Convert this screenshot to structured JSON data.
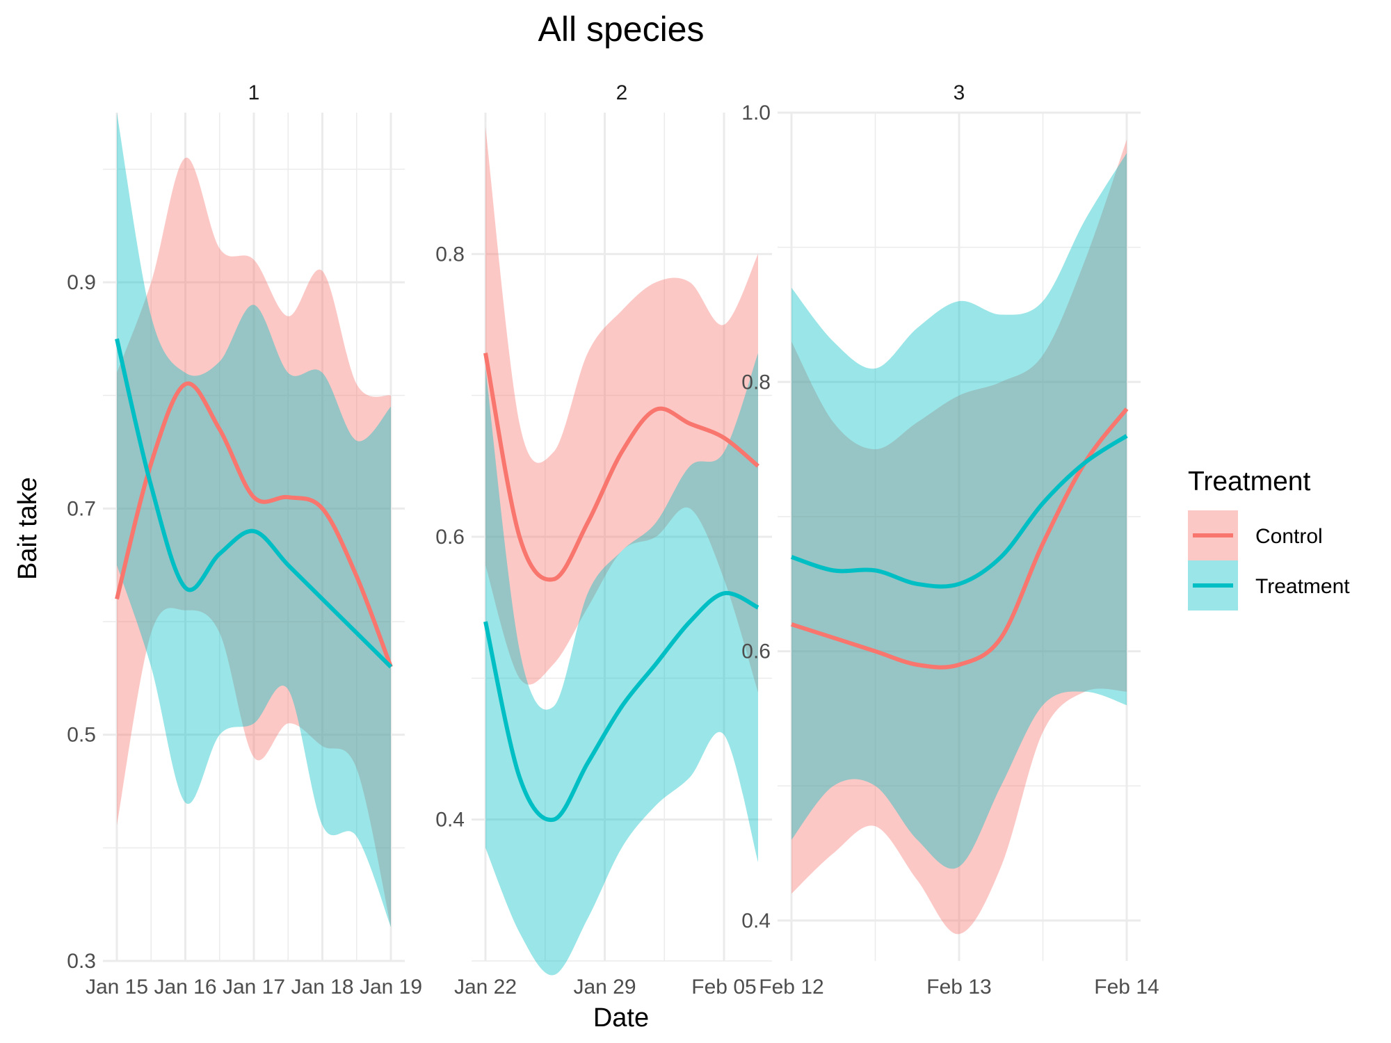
{
  "chart_data": {
    "type": "line",
    "title": "All species",
    "xlabel": "Date",
    "ylabel": "Bait take",
    "legend": {
      "title": "Treatment",
      "placement": "right",
      "entries": [
        {
          "name": "Control",
          "color": "#F8766D"
        },
        {
          "name": "Treatment",
          "color": "#00BFC4"
        }
      ]
    },
    "overlap_color": "#989898",
    "ribbon_opacity": 0.4,
    "facets": [
      {
        "strip": "1",
        "xlim": [
          "2024-01-15",
          "2024-01-19"
        ],
        "x_ticks": [
          {
            "date": "2024-01-15",
            "label": "Jan 15"
          },
          {
            "date": "2024-01-16",
            "label": "Jan 16"
          },
          {
            "date": "2024-01-17",
            "label": "Jan 17"
          },
          {
            "date": "2024-01-18",
            "label": "Jan 18"
          },
          {
            "date": "2024-01-19",
            "label": "Jan 19"
          }
        ],
        "ylim": [
          0.3,
          1.05
        ],
        "y_ticks": [
          0.3,
          0.5,
          0.7,
          0.9
        ],
        "y_minor": [
          0.4,
          0.6,
          0.8,
          1.0
        ],
        "series": [
          {
            "name": "Control",
            "x": [
              "2024-01-15 00:00",
              "2024-01-15 12:00",
              "2024-01-16 00:00",
              "2024-01-16 12:00",
              "2024-01-17 00:00",
              "2024-01-17 12:00",
              "2024-01-18 00:00",
              "2024-01-18 12:00",
              "2024-01-19 00:00"
            ],
            "y": [
              0.62,
              0.74,
              0.81,
              0.77,
              0.71,
              0.71,
              0.7,
              0.64,
              0.56
            ],
            "lower": [
              0.42,
              0.59,
              0.61,
              0.59,
              0.48,
              0.51,
              0.49,
              0.47,
              0.33
            ],
            "upper": [
              0.82,
              0.9,
              1.01,
              0.93,
              0.92,
              0.87,
              0.91,
              0.81,
              0.8
            ]
          },
          {
            "name": "Treatment",
            "x": [
              "2024-01-15 00:00",
              "2024-01-15 12:00",
              "2024-01-16 00:00",
              "2024-01-16 12:00",
              "2024-01-17 00:00",
              "2024-01-17 12:00",
              "2024-01-18 00:00",
              "2024-01-18 12:00",
              "2024-01-19 00:00"
            ],
            "y": [
              0.85,
              0.72,
              0.63,
              0.66,
              0.68,
              0.65,
              0.62,
              0.59,
              0.56
            ],
            "lower": [
              0.65,
              0.56,
              0.44,
              0.5,
              0.51,
              0.54,
              0.42,
              0.41,
              0.33
            ],
            "upper": [
              1.05,
              0.87,
              0.82,
              0.83,
              0.88,
              0.82,
              0.82,
              0.76,
              0.79
            ]
          }
        ]
      },
      {
        "strip": "2",
        "xlim": [
          "2024-01-22",
          "2024-02-07"
        ],
        "x_ticks": [
          {
            "date": "2024-01-22",
            "label": "Jan 22"
          },
          {
            "date": "2024-01-29",
            "label": "Jan 29"
          },
          {
            "date": "2024-02-05",
            "label": "Feb 05"
          }
        ],
        "ylim": [
          0.3,
          0.9
        ],
        "y_ticks": [
          0.4,
          0.6,
          0.8
        ],
        "y_minor": [
          0.3,
          0.5,
          0.7
        ],
        "series": [
          {
            "name": "Control",
            "x": [
              "2024-01-22",
              "2024-01-24",
              "2024-01-26",
              "2024-01-28",
              "2024-01-30",
              "2024-02-01",
              "2024-02-03",
              "2024-02-05",
              "2024-02-07"
            ],
            "y": [
              0.73,
              0.6,
              0.57,
              0.61,
              0.66,
              0.69,
              0.68,
              0.67,
              0.65
            ],
            "lower": [
              0.58,
              0.5,
              0.51,
              0.55,
              0.59,
              0.6,
              0.62,
              0.57,
              0.49
            ],
            "upper": [
              0.89,
              0.68,
              0.66,
              0.73,
              0.76,
              0.78,
              0.78,
              0.75,
              0.8
            ]
          },
          {
            "name": "Treatment",
            "x": [
              "2024-01-22",
              "2024-01-24",
              "2024-01-26",
              "2024-01-28",
              "2024-01-30",
              "2024-02-01",
              "2024-02-03",
              "2024-02-05",
              "2024-02-07"
            ],
            "y": [
              0.54,
              0.43,
              0.4,
              0.44,
              0.48,
              0.51,
              0.54,
              0.56,
              0.55
            ],
            "lower": [
              0.38,
              0.32,
              0.29,
              0.33,
              0.38,
              0.41,
              0.43,
              0.46,
              0.37
            ],
            "upper": [
              0.72,
              0.52,
              0.48,
              0.56,
              0.59,
              0.61,
              0.65,
              0.66,
              0.73
            ]
          }
        ]
      },
      {
        "strip": "3",
        "xlim": [
          "2024-02-12",
          "2024-02-14"
        ],
        "x_ticks": [
          {
            "date": "2024-02-12",
            "label": "Feb 12"
          },
          {
            "date": "2024-02-13",
            "label": "Feb 13"
          },
          {
            "date": "2024-02-14",
            "label": "Feb 14"
          }
        ],
        "ylim": [
          0.37,
          1.0
        ],
        "y_ticks": [
          0.4,
          0.6,
          0.8,
          1.0
        ],
        "y_minor": [
          0.5,
          0.7,
          0.9
        ],
        "series": [
          {
            "name": "Control",
            "x": [
              "2024-02-12 00:00",
              "2024-02-12 06:00",
              "2024-02-12 12:00",
              "2024-02-12 18:00",
              "2024-02-13 00:00",
              "2024-02-13 06:00",
              "2024-02-13 12:00",
              "2024-02-13 18:00",
              "2024-02-14 00:00"
            ],
            "y": [
              0.62,
              0.61,
              0.6,
              0.59,
              0.59,
              0.61,
              0.68,
              0.74,
              0.78
            ],
            "lower": [
              0.42,
              0.45,
              0.47,
              0.43,
              0.39,
              0.44,
              0.54,
              0.57,
              0.57
            ],
            "upper": [
              0.83,
              0.77,
              0.75,
              0.77,
              0.79,
              0.8,
              0.82,
              0.89,
              0.98
            ]
          },
          {
            "name": "Treatment",
            "x": [
              "2024-02-12 00:00",
              "2024-02-12 06:00",
              "2024-02-12 12:00",
              "2024-02-12 18:00",
              "2024-02-13 00:00",
              "2024-02-13 06:00",
              "2024-02-13 12:00",
              "2024-02-13 18:00",
              "2024-02-14 00:00"
            ],
            "y": [
              0.67,
              0.66,
              0.66,
              0.65,
              0.65,
              0.67,
              0.71,
              0.74,
              0.76
            ],
            "lower": [
              0.46,
              0.5,
              0.5,
              0.46,
              0.44,
              0.5,
              0.56,
              0.57,
              0.56
            ],
            "upper": [
              0.87,
              0.83,
              0.81,
              0.84,
              0.86,
              0.85,
              0.86,
              0.92,
              0.97
            ]
          }
        ]
      }
    ]
  }
}
